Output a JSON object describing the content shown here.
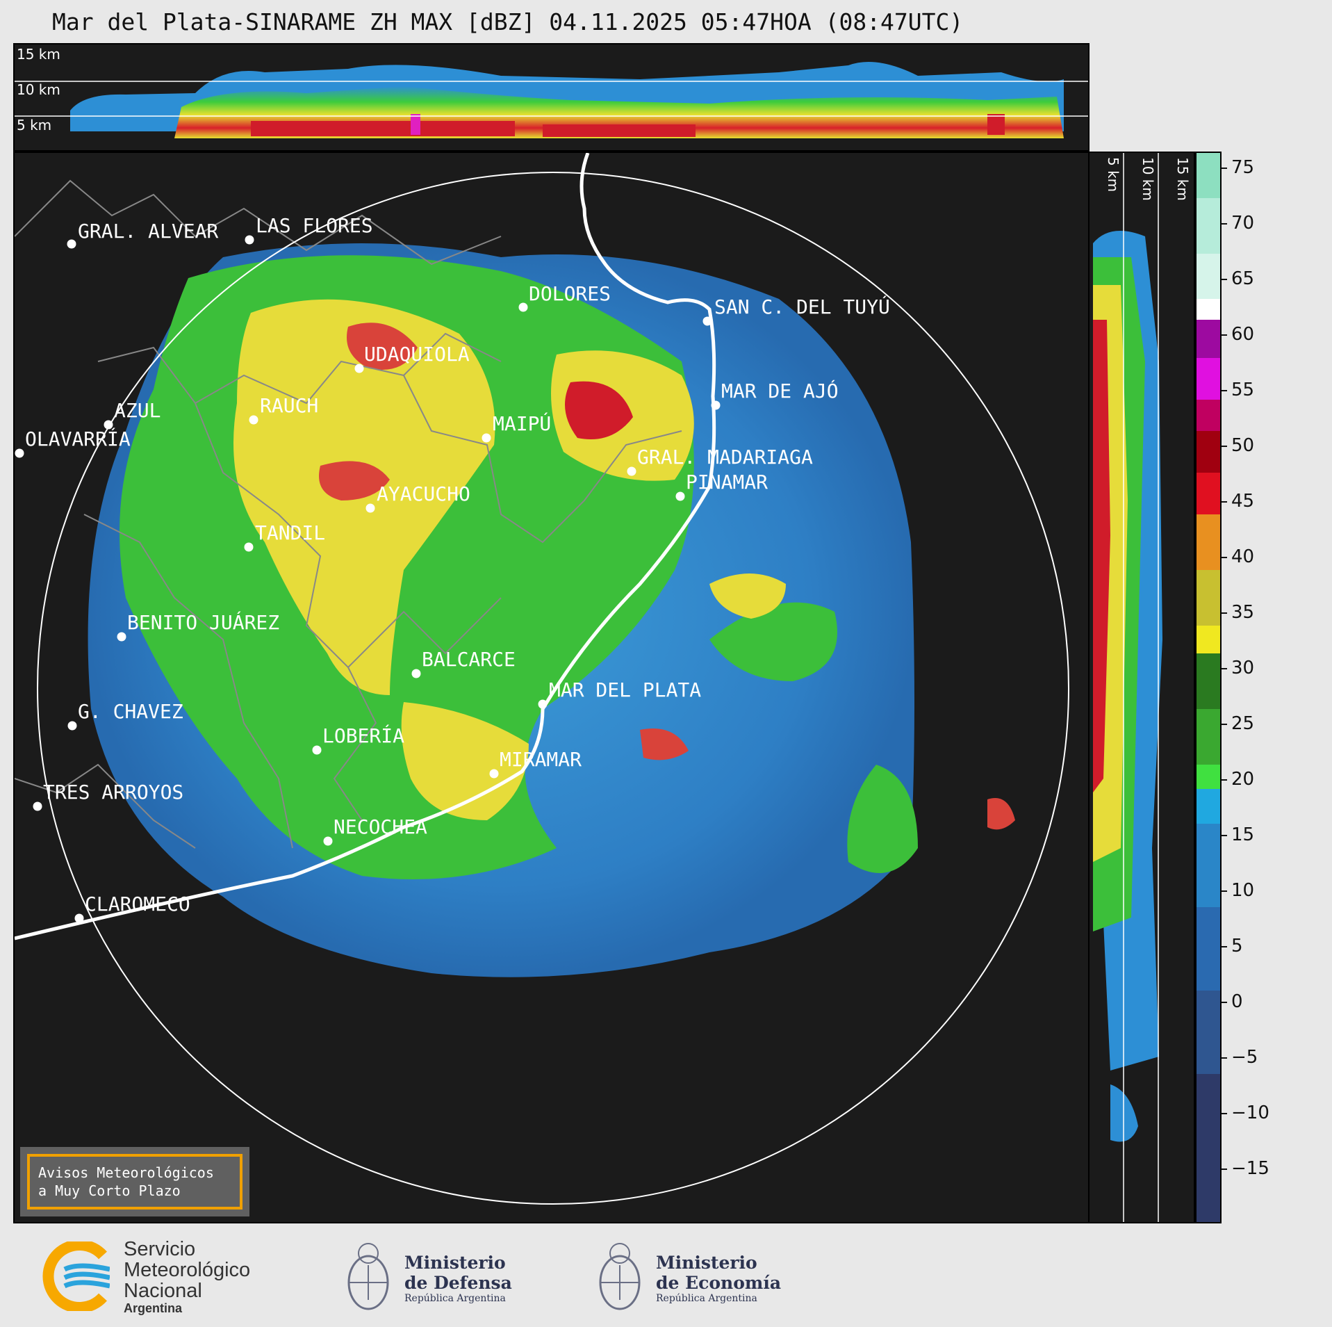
{
  "title": "Mar del Plata-SINARAME ZH MAX [dBZ] 04.11.2025 05:47HOA (08:47UTC)",
  "top_axis_labels": [
    "15 km",
    "10 km",
    "5 km"
  ],
  "side_axis_labels": [
    "5 km",
    "10 km",
    "15 km"
  ],
  "colorbar": {
    "ticks": [
      "75",
      "70",
      "65",
      "60",
      "55",
      "50",
      "45",
      "40",
      "35",
      "30",
      "25",
      "20",
      "15",
      "10",
      "5",
      "0",
      "−5",
      "−10",
      "−15"
    ],
    "range": [
      -20,
      77
    ]
  },
  "cities": [
    {
      "name": "GRAL. ALVEAR"
    },
    {
      "name": "LAS FLORES"
    },
    {
      "name": "DOLORES"
    },
    {
      "name": "SAN C. DEL TUYÚ"
    },
    {
      "name": "MAR DE AJÓ"
    },
    {
      "name": "UDAQUIOLA"
    },
    {
      "name": "AZUL"
    },
    {
      "name": "OLAVARRÍA"
    },
    {
      "name": "RAUCH"
    },
    {
      "name": "MAIPÚ"
    },
    {
      "name": "GRAL. MADARIAGA"
    },
    {
      "name": "PINAMAR"
    },
    {
      "name": "AYACUCHO"
    },
    {
      "name": "TANDIL"
    },
    {
      "name": "BENITO JUÁREZ"
    },
    {
      "name": "BALCARCE"
    },
    {
      "name": "MAR DEL PLATA"
    },
    {
      "name": "G. CHAVEZ"
    },
    {
      "name": "LOBERÍA"
    },
    {
      "name": "MIRAMAR"
    },
    {
      "name": "TRES ARROYOS"
    },
    {
      "name": "NECOCHEA"
    },
    {
      "name": "CLAROMECO"
    }
  ],
  "avisos": {
    "line1": "Avisos Meteorológicos",
    "line2": "a Muy Corto Plazo"
  },
  "footer": {
    "smn": {
      "line1": "Servicio",
      "line2": "Meteorológico",
      "line3": "Nacional",
      "line4": "Argentina"
    },
    "defensa": {
      "line1": "Ministerio",
      "line2": "de Defensa",
      "line3": "República Argentina"
    },
    "economia": {
      "line1": "Ministerio",
      "line2": "de Economía",
      "line3": "República Argentina"
    }
  }
}
